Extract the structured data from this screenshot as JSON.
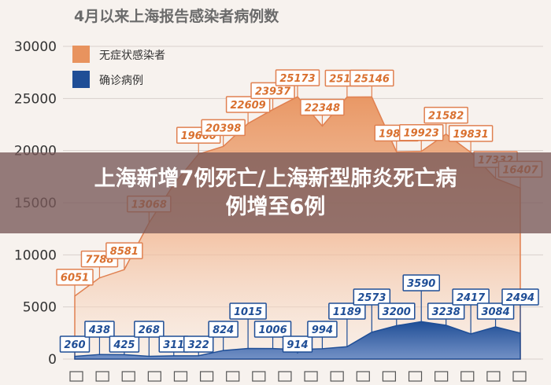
{
  "chart_data": {
    "type": "area",
    "title": "4月以来上海报告感染者病例数",
    "ylim": [
      0,
      30000
    ],
    "yticks": [
      0,
      5000,
      10000,
      15000,
      20000,
      25000,
      30000
    ],
    "xtick_count": 18,
    "grid": true,
    "legend_position": "top-left",
    "series": [
      {
        "name": "无症状感染者",
        "color": "#e8935e",
        "values": [
          6051,
          7788,
          8581,
          13068,
          16766,
          19660,
          20398,
          22609,
          23937,
          25173,
          22348,
          25141,
          25146,
          19872,
          19923,
          21582,
          19831,
          17332,
          16407
        ]
      },
      {
        "name": "确诊病例",
        "color": "#1f4e96",
        "values": [
          260,
          438,
          425,
          268,
          311,
          322,
          824,
          1015,
          1006,
          914,
          994,
          1189,
          2573,
          3200,
          3590,
          3238,
          2417,
          3084,
          2494
        ]
      }
    ],
    "asym_labels": [
      {
        "text": "6051",
        "i": 0
      },
      {
        "text": "7788",
        "i": 1
      },
      {
        "text": "8581",
        "i": 2
      },
      {
        "text": "13068",
        "i": 3
      },
      {
        "text": "19660",
        "i": 5
      },
      {
        "text": "20398",
        "i": 6
      },
      {
        "text": "22609",
        "i": 7
      },
      {
        "text": "23937",
        "i": 8
      },
      {
        "text": "25173",
        "i": 9
      },
      {
        "text": "22348",
        "i": 10
      },
      {
        "text": "25141",
        "i": 11
      },
      {
        "text": "25146",
        "i": 12
      },
      {
        "text": "19872",
        "i": 13
      },
      {
        "text": "19923",
        "i": 14
      },
      {
        "text": "21582",
        "i": 15
      },
      {
        "text": "19831",
        "i": 16
      },
      {
        "text": "17332",
        "i": 17
      },
      {
        "text": "16407",
        "i": 18
      }
    ],
    "conf_labels": [
      {
        "text": "260",
        "i": 0,
        "row": "low"
      },
      {
        "text": "438",
        "i": 1,
        "row": "high"
      },
      {
        "text": "425",
        "i": 2,
        "row": "low"
      },
      {
        "text": "268",
        "i": 3,
        "row": "high"
      },
      {
        "text": "311",
        "i": 4,
        "row": "low"
      },
      {
        "text": "322",
        "i": 5,
        "row": "low"
      },
      {
        "text": "824",
        "i": 6,
        "row": "high"
      },
      {
        "text": "1015",
        "i": 7,
        "row": "top"
      },
      {
        "text": "1006",
        "i": 8,
        "row": "high"
      },
      {
        "text": "914",
        "i": 9,
        "row": "low"
      },
      {
        "text": "994",
        "i": 10,
        "row": "high"
      },
      {
        "text": "1189",
        "i": 11,
        "row": "top"
      },
      {
        "text": "2573",
        "i": 12,
        "row": "peak"
      },
      {
        "text": "3200",
        "i": 13,
        "row": "top"
      },
      {
        "text": "3590",
        "i": 14,
        "row": "peak2"
      },
      {
        "text": "3238",
        "i": 15,
        "row": "top"
      },
      {
        "text": "2417",
        "i": 16,
        "row": "peak"
      },
      {
        "text": "3084",
        "i": 17,
        "row": "top"
      },
      {
        "text": "2494",
        "i": 18,
        "row": "peak"
      }
    ]
  },
  "banner": {
    "line1": "上海新增7例死亡/上海新型肺炎死亡病",
    "line2": "例增至6例"
  },
  "colors": {
    "background": "#f7f2ee",
    "grid": "#d8d0cc",
    "asym_fill": "#e8935e",
    "conf_fill": "#1f4e96",
    "banner": "#785858"
  }
}
